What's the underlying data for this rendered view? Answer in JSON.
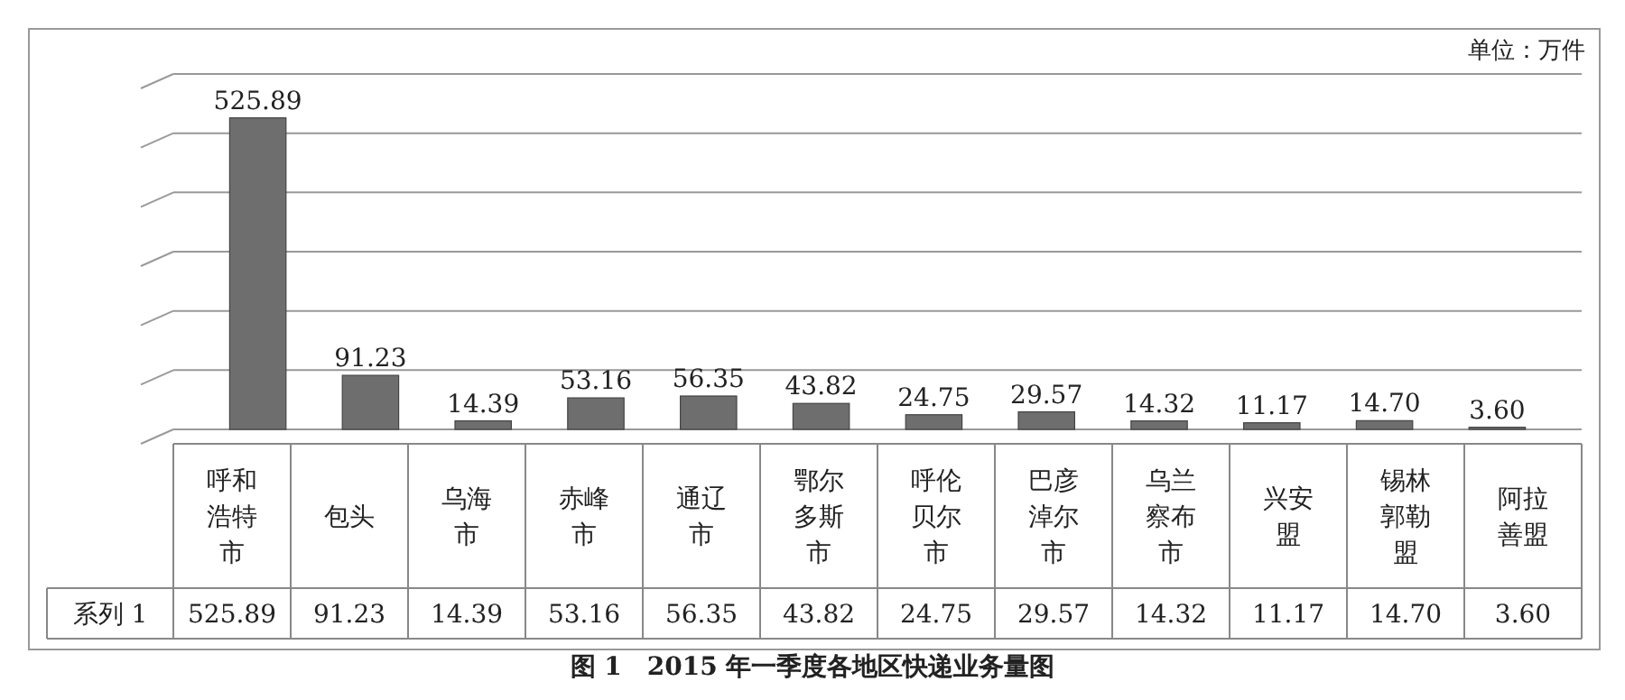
{
  "chart_data": {
    "type": "bar",
    "title": "图 1　2015 年一季度各地区快递业务量图",
    "annotations": [
      "单位：万件"
    ],
    "categories": [
      "呼和浩特市",
      "包头",
      "乌海市",
      "赤峰市",
      "通辽市",
      "鄂尔多斯市",
      "呼伦贝尔市",
      "巴彦淖尔市",
      "乌兰察布市",
      "兴安盟",
      "锡林郭勒盟",
      "阿拉善盟"
    ],
    "series": [
      {
        "name": "系列 1",
        "color": "#6e6e6e",
        "values": [
          525.89,
          91.23,
          14.39,
          53.16,
          56.35,
          43.82,
          24.75,
          29.57,
          14.32,
          11.17,
          14.7,
          3.6
        ],
        "value_labels": [
          "525.89",
          "91.23",
          "14.39",
          "53.16",
          "56.35",
          "43.82",
          "24.75",
          "29.57",
          "14.32",
          "11.17",
          "14.70",
          "3.60"
        ]
      }
    ],
    "ylim": [
      0,
      600
    ],
    "yticks": [
      {
        "value": 0,
        "label": null
      },
      {
        "value": 100,
        "label": null
      },
      {
        "value": 200,
        "label": null
      },
      {
        "value": 300,
        "label": null
      },
      {
        "value": 400,
        "label": null
      },
      {
        "value": 500,
        "label": null
      },
      {
        "value": 600,
        "label": null
      }
    ],
    "grid": "y",
    "tick_labels": "x"
  }
}
